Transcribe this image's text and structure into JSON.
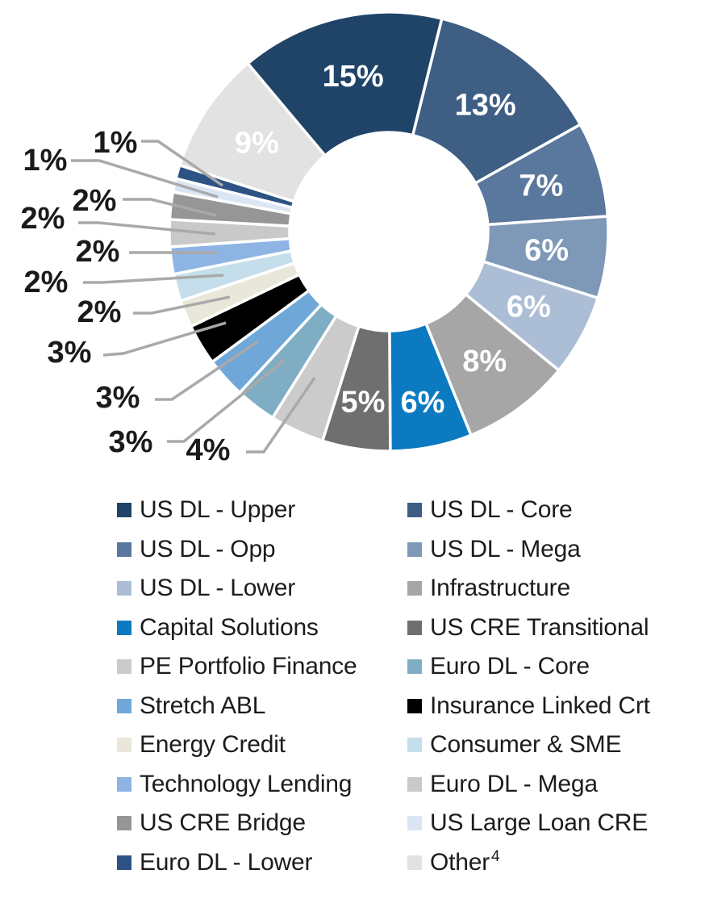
{
  "figure": {
    "kind": "donut-chart-with-legend",
    "background": "#ffffff",
    "leader_line_color": "#a9a9a9",
    "inside_label_color": "#ffffff",
    "outside_label_color": "#1a1a1a",
    "legend_text_color": "#1c1c1c"
  },
  "chart_data": {
    "type": "pie",
    "subtype": "donut",
    "direction": "clockwise",
    "start_angle_deg": -40,
    "legend_position": "bottom",
    "legend_columns": 2,
    "items": [
      {
        "label": "US DL - Upper",
        "value": 15,
        "display": "15%",
        "color": "#1f4468",
        "inside": true
      },
      {
        "label": "US DL - Core",
        "value": 13,
        "display": "13%",
        "color": "#3e5e84",
        "inside": true
      },
      {
        "label": "US DL - Opp",
        "value": 7,
        "display": "7%",
        "color": "#5a779d",
        "inside": true
      },
      {
        "label": "US DL - Mega",
        "value": 6,
        "display": "6%",
        "color": "#7e98b8",
        "inside": true
      },
      {
        "label": "US DL - Lower",
        "value": 6,
        "display": "6%",
        "color": "#acbed6",
        "inside": true
      },
      {
        "label": "Infrastructure",
        "value": 8,
        "display": "8%",
        "color": "#a6a6a6",
        "inside": true
      },
      {
        "label": "Capital Solutions",
        "value": 6,
        "display": "6%",
        "color": "#0b7ac0",
        "inside": true
      },
      {
        "label": "US CRE Transitional",
        "value": 5,
        "display": "5%",
        "color": "#6f6f6f",
        "inside": true
      },
      {
        "label": "PE Portfolio Finance",
        "value": 4,
        "display": "4%",
        "color": "#cbcbcb",
        "inside": false
      },
      {
        "label": "Euro DL - Core",
        "value": 3,
        "display": "3%",
        "color": "#7eadc4",
        "inside": false
      },
      {
        "label": "Stretch ABL",
        "value": 3,
        "display": "3%",
        "color": "#6fa8d8",
        "inside": false
      },
      {
        "label": "Insurance Linked Crt",
        "value": 3,
        "display": "3%",
        "color": "#000000",
        "inside": false
      },
      {
        "label": "Energy Credit",
        "value": 2,
        "display": "2%",
        "color": "#eae7da",
        "inside": false
      },
      {
        "label": "Consumer & SME",
        "value": 2,
        "display": "2%",
        "color": "#c4dfeb",
        "inside": false
      },
      {
        "label": "Technology Lending",
        "value": 2,
        "display": "2%",
        "color": "#8eb4e3",
        "inside": false
      },
      {
        "label": "Euro DL - Mega",
        "value": 2,
        "display": "2%",
        "color": "#c9c9c9",
        "inside": false
      },
      {
        "label": "US CRE Bridge",
        "value": 2,
        "display": "2%",
        "color": "#969696",
        "inside": false
      },
      {
        "label": "US Large Loan CRE",
        "value": 1,
        "display": "1%",
        "color": "#dae6f3",
        "inside": false
      },
      {
        "label": "Euro DL - Lower",
        "value": 1,
        "display": "1%",
        "color": "#2d5384",
        "inside": false
      },
      {
        "label": "Other",
        "value": 9,
        "display": "9%",
        "color": "#e2e2e2",
        "inside": true,
        "sup": "4"
      }
    ]
  }
}
